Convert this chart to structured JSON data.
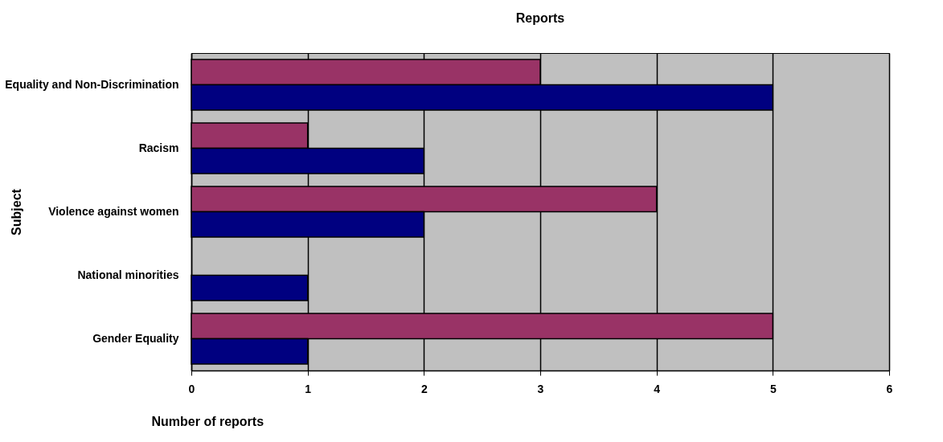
{
  "chart_data": {
    "type": "bar",
    "orientation": "horizontal",
    "title": "Reports",
    "xlabel": "Number of reports",
    "ylabel": "Subject",
    "categories": [
      "Equality and Non-Discrimination",
      "Racism",
      "Violence against women",
      "National minorities",
      "Gender Equality"
    ],
    "series": [
      {
        "color": "#993366",
        "values": [
          3,
          1,
          4,
          null,
          5
        ]
      },
      {
        "color": "#000080",
        "values": [
          5,
          2,
          2,
          1,
          1
        ]
      }
    ],
    "xlim": [
      0,
      6
    ],
    "xticks": [
      0,
      1,
      2,
      3,
      4,
      5,
      6
    ],
    "grid": "x",
    "legend": false
  }
}
